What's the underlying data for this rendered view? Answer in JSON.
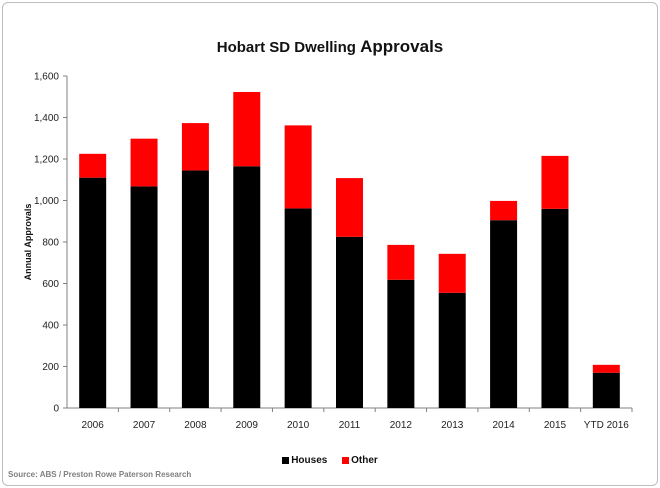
{
  "chart_data": {
    "type": "bar",
    "stacked": true,
    "title_prefix": "Hobart SD Dwelling",
    "title_suffix": "Approvals",
    "ylabel": "Annual Approvals",
    "xlabel": "",
    "ylim": [
      0,
      1600
    ],
    "y_ticks": [
      "0",
      "200",
      "400",
      "600",
      "800",
      "1,000",
      "1,200",
      "1,400",
      "1,600"
    ],
    "categories": [
      "2006",
      "2007",
      "2008",
      "2009",
      "2010",
      "2011",
      "2012",
      "2013",
      "2014",
      "2015",
      "YTD 2016"
    ],
    "series": [
      {
        "name": "Houses",
        "color": "#000000",
        "values": [
          1110,
          1068,
          1145,
          1165,
          962,
          825,
          618,
          555,
          905,
          960,
          170
        ]
      },
      {
        "name": "Other",
        "color": "#ff0000",
        "values": [
          115,
          230,
          228,
          358,
          400,
          283,
          168,
          188,
          93,
          255,
          38
        ]
      }
    ],
    "grid": false,
    "legend_position": "bottom",
    "source": "Source: ABS / Preston Rowe Paterson Research"
  }
}
